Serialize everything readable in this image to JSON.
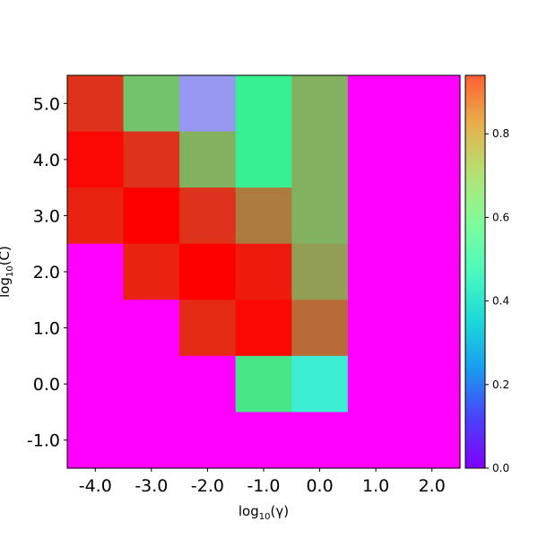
{
  "chart_data": {
    "type": "heatmap",
    "title": "",
    "x_tick_labels": [
      "-4.0",
      "-3.0",
      "-2.0",
      "-1.0",
      "0.0",
      "1.0",
      "2.0"
    ],
    "y_tick_labels": [
      "-1.0",
      "0.0",
      "1.0",
      "2.0",
      "3.0",
      "4.0",
      "5.0"
    ],
    "xlabel": {
      "prefix": "log",
      "sub": "10",
      "suffix": "(γ)"
    },
    "ylabel": {
      "prefix": "log",
      "sub": "10",
      "suffix": "(C)"
    },
    "colormap": "rainbow",
    "colorbar_ticks": [
      "0.0",
      "0.2",
      "0.4",
      "0.6",
      "0.8"
    ],
    "colorbar_range": [
      0.0,
      0.94
    ],
    "values": [
      [
        0.88,
        0.68,
        0.19,
        0.57,
        0.71,
        0.0,
        0.0
      ],
      [
        0.93,
        0.88,
        0.71,
        0.57,
        0.71,
        0.0,
        0.0
      ],
      [
        0.9,
        0.94,
        0.88,
        0.79,
        0.71,
        0.0,
        0.0
      ],
      [
        0.0,
        0.9,
        0.94,
        0.91,
        0.74,
        0.0,
        0.0
      ],
      [
        0.0,
        0.0,
        0.89,
        0.93,
        0.81,
        0.0,
        0.0
      ],
      [
        0.0,
        0.0,
        0.0,
        0.6,
        0.36,
        0.0,
        0.0
      ],
      [
        0.0,
        0.0,
        0.0,
        0.0,
        0.0,
        0.0,
        0.0
      ]
    ]
  }
}
